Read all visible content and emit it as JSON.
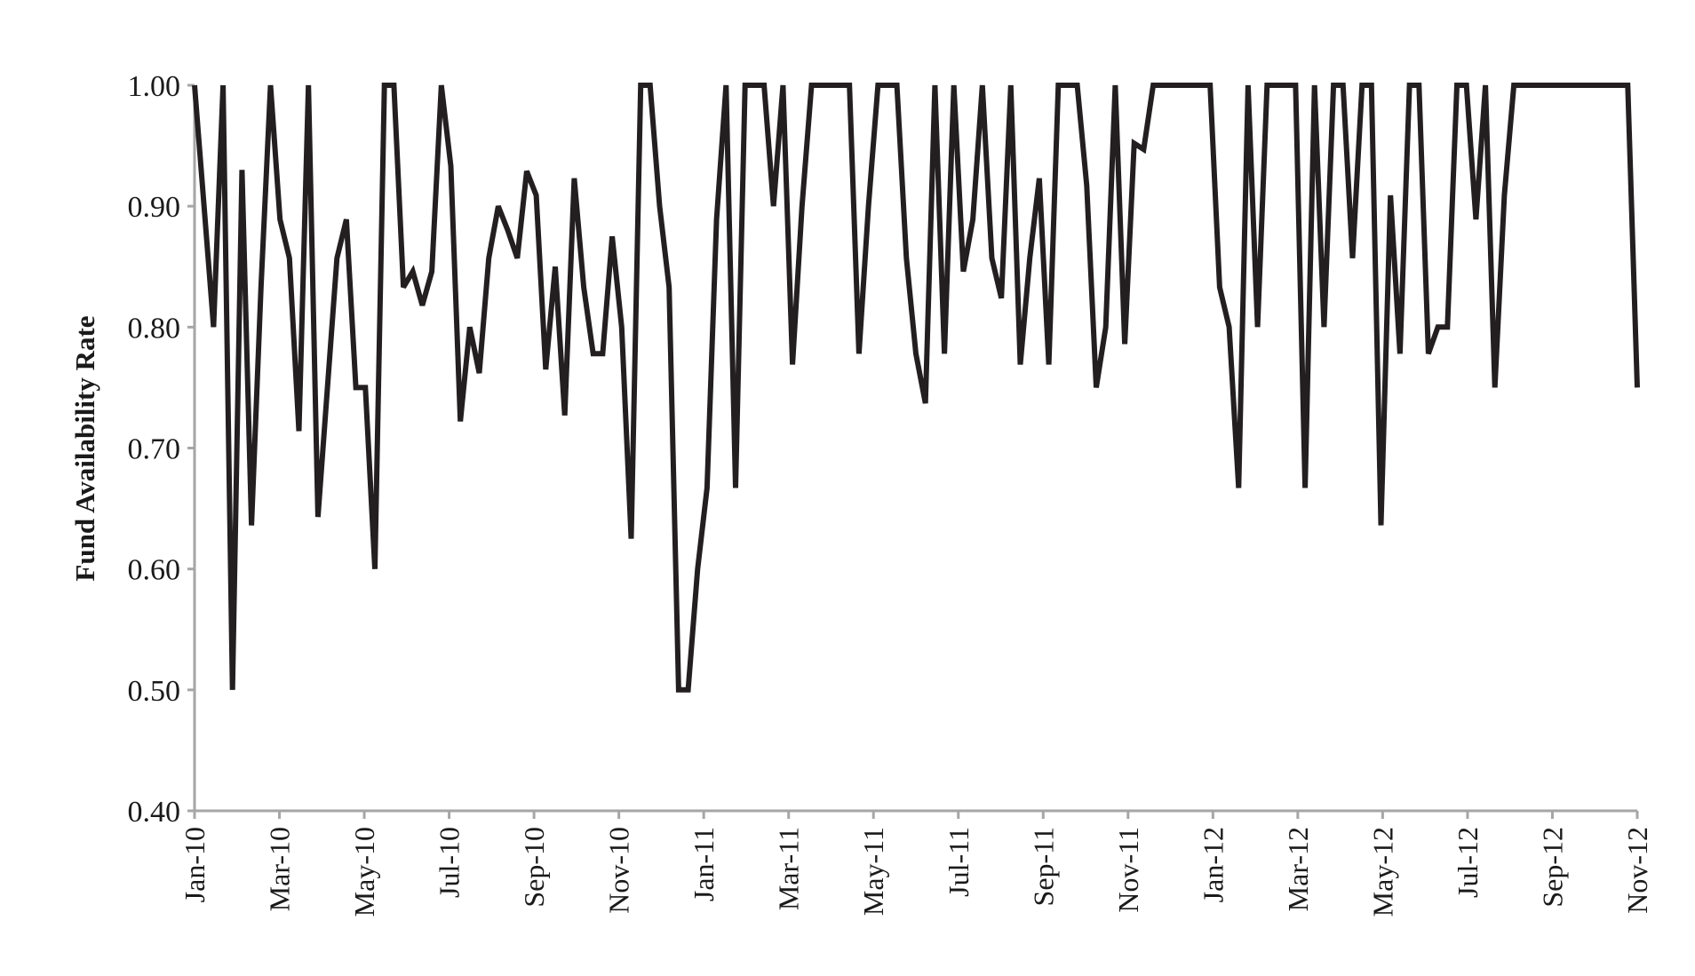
{
  "chart_data": {
    "type": "line",
    "title": "",
    "xlabel": "",
    "ylabel": "Fund Availability Rate",
    "ylim": [
      0.4,
      1.0
    ],
    "yticks": [
      "0.40",
      "0.50",
      "0.60",
      "0.70",
      "0.80",
      "0.90",
      "1.00"
    ],
    "xticks": [
      "Jan-10",
      "Mar-10",
      "May-10",
      "Jul-10",
      "Sep-10",
      "Nov-10",
      "Jan-11",
      "Mar-11",
      "May-11",
      "Jul-11",
      "Sep-11",
      "Nov-11",
      "Jan-12",
      "Mar-12",
      "May-12",
      "Jul-12",
      "Sep-12",
      "Nov-12"
    ],
    "x_period": "weekly",
    "x_start": "Jan-10",
    "grid": false,
    "legend": "none",
    "series": [
      {
        "color": "#231f20",
        "values": [
          1.0,
          0.9,
          0.8,
          1.0,
          0.5,
          0.93,
          0.636,
          0.833,
          1.0,
          0.889,
          0.857,
          0.714,
          1.0,
          0.643,
          0.75,
          0.857,
          0.889,
          0.75,
          0.75,
          0.6,
          1.0,
          1.0,
          0.833,
          0.846,
          0.818,
          0.846,
          1.0,
          0.933,
          0.722,
          0.8,
          0.762,
          0.857,
          0.9,
          0.88,
          0.857,
          0.929,
          0.909,
          0.765,
          0.85,
          0.727,
          0.923,
          0.833,
          0.778,
          0.778,
          0.875,
          0.8,
          0.625,
          1.0,
          1.0,
          0.9,
          0.833,
          0.5,
          0.5,
          0.6,
          0.667,
          0.889,
          1.0,
          0.667,
          1.0,
          1.0,
          1.0,
          0.9,
          1.0,
          0.769,
          0.9,
          1.0,
          1.0,
          1.0,
          1.0,
          1.0,
          0.778,
          0.9,
          1.0,
          1.0,
          1.0,
          0.857,
          0.778,
          0.737,
          1.0,
          0.778,
          1.0,
          0.846,
          0.889,
          1.0,
          0.857,
          0.824,
          1.0,
          0.769,
          0.857,
          0.923,
          0.769,
          1.0,
          1.0,
          1.0,
          0.917,
          0.75,
          0.8,
          1.0,
          0.786,
          0.952,
          0.947,
          1.0,
          1.0,
          1.0,
          1.0,
          1.0,
          1.0,
          1.0,
          0.833,
          0.8,
          0.667,
          1.0,
          0.8,
          1.0,
          1.0,
          1.0,
          1.0,
          0.667,
          1.0,
          0.8,
          1.0,
          1.0,
          0.857,
          1.0,
          1.0,
          0.636,
          0.909,
          0.778,
          1.0,
          1.0,
          0.778,
          0.8,
          0.8,
          1.0,
          1.0,
          0.889,
          1.0,
          0.75,
          0.909,
          1.0,
          1.0,
          1.0,
          1.0,
          1.0,
          1.0,
          1.0,
          1.0,
          1.0,
          1.0,
          1.0,
          1.0,
          1.0,
          0.75
        ]
      }
    ]
  }
}
